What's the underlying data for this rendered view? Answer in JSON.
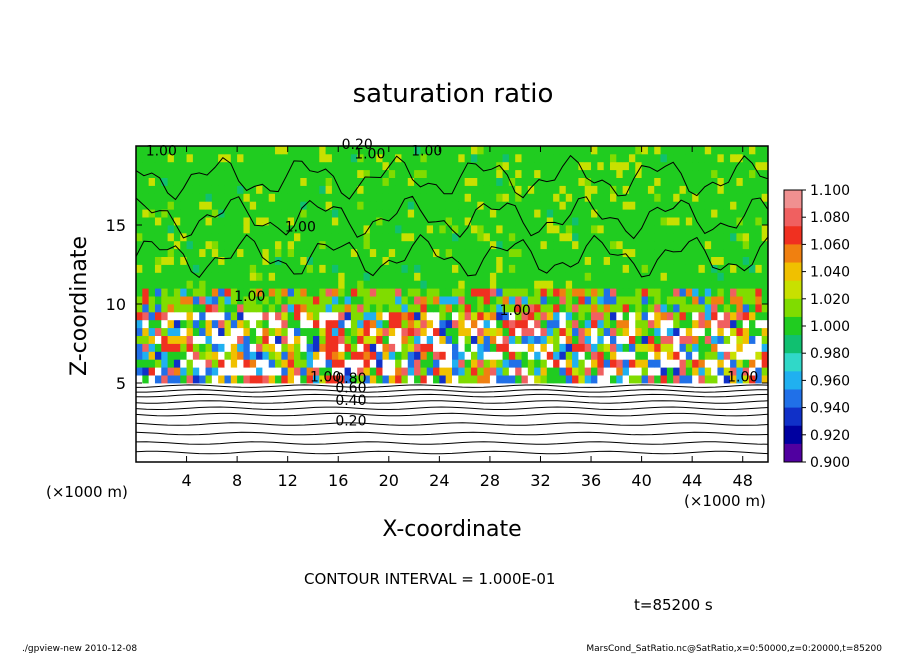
{
  "chart_data": {
    "type": "heatmap",
    "title": "saturation ratio",
    "xlabel": "X-coordinate",
    "ylabel": "Z-coordinate",
    "x_unit": "(×1000 m)",
    "y_unit": "(×1000 m)",
    "xlim": [
      0,
      50
    ],
    "ylim": [
      0,
      20
    ],
    "x_ticks": [
      "4",
      "8",
      "12",
      "16",
      "20",
      "24",
      "28",
      "32",
      "36",
      "40",
      "44",
      "48"
    ],
    "y_ticks": [
      "5",
      "10",
      "15"
    ],
    "colorbar": {
      "range": [
        0.9,
        1.1
      ],
      "labels": [
        "1.100",
        "1.080",
        "1.060",
        "1.040",
        "1.020",
        "1.000",
        "0.980",
        "0.960",
        "0.940",
        "0.920",
        "0.900"
      ],
      "colors": [
        "#f09090",
        "#f06060",
        "#f03020",
        "#f08010",
        "#f0c000",
        "#c8e000",
        "#80dc00",
        "#20cc20",
        "#10c070",
        "#30d8c8",
        "#20b0f0",
        "#2070e8",
        "#1030c8",
        "#0000a0",
        "#5000a0"
      ]
    },
    "contour_labels": [
      "0.20",
      "0.40",
      "0.60",
      "0.80",
      "1.00",
      "1.00",
      "1.00",
      "1.00",
      "1.00",
      "1.00",
      "1.00",
      "1.00",
      "0.20"
    ],
    "colors": {
      "background_green": "#20cc20",
      "supersaturated": "#f03020",
      "subsaturated": "#2070e8",
      "above_range": "#ffffff",
      "contour_line": "#000000"
    }
  },
  "annotations": {
    "contour_interval": "CONTOUR INTERVAL = 1.000E-01",
    "time": "t=85200 s",
    "footer_left": "./gpview-new  2010-12-08",
    "footer_right": "MarsCond_SatRatio.nc@SatRatio,x=0:50000,z=0:20000,t=85200"
  }
}
